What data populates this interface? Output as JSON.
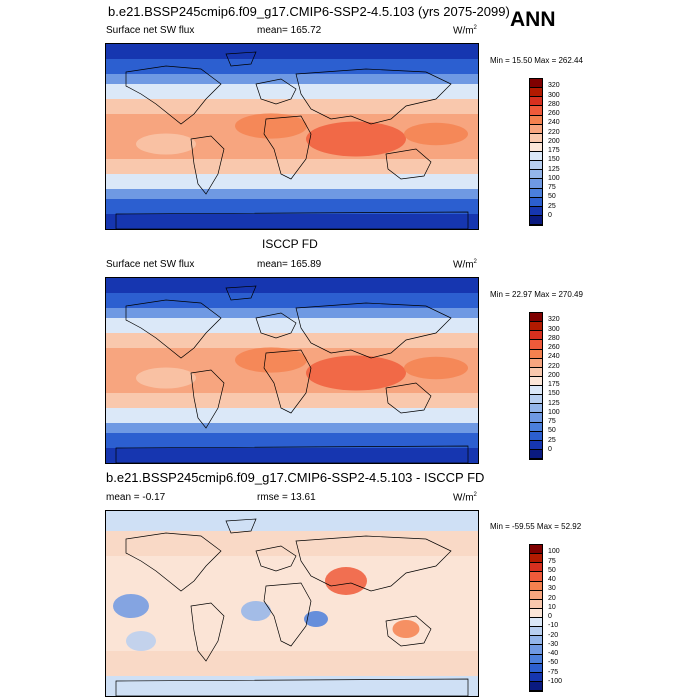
{
  "annotation": "ANN",
  "panels": [
    {
      "title": "b.e21.BSSP245cmip6.f09_g17.CMIP6-SSP2-4.5.103 (yrs 2075-2099)",
      "left_label": "Surface net SW flux",
      "mean_text": "mean= 165.72",
      "units": "W/m",
      "units_sup": "2",
      "minmax": "Min = 15.50 Max = 262.44",
      "colorbar_labels": [
        "320",
        "300",
        "280",
        "260",
        "240",
        "220",
        "200",
        "175",
        "150",
        "125",
        "100",
        "75",
        "50",
        "25",
        "0"
      ]
    },
    {
      "title": "ISCCP FD",
      "left_label": "Surface net SW flux",
      "mean_text": "mean= 165.89",
      "units": "W/m",
      "units_sup": "2",
      "minmax": "Min = 22.97 Max = 270.49",
      "colorbar_labels": [
        "320",
        "300",
        "280",
        "260",
        "240",
        "220",
        "200",
        "175",
        "150",
        "125",
        "100",
        "75",
        "50",
        "25",
        "0"
      ]
    },
    {
      "title": "b.e21.BSSP245cmip6.f09_g17.CMIP6-SSP2-4.5.103 - ISCCP FD",
      "left_label": "mean =  -0.17",
      "mean_text": "rmse =  13.61",
      "units": "W/m",
      "units_sup": "2",
      "minmax": "Min = -59.55 Max =  52.92",
      "colorbar_labels": [
        "100",
        "75",
        "50",
        "40",
        "30",
        "20",
        "10",
        "0",
        "-10",
        "-20",
        "-30",
        "-40",
        "-50",
        "-75",
        "-100"
      ]
    }
  ],
  "colors": {
    "scale": [
      "#7f0000",
      "#b21a00",
      "#d7301f",
      "#ef5a3a",
      "#f4814f",
      "#f7a57f",
      "#f9c8ad",
      "#fce6d8",
      "#dbe8f8",
      "#b8cff0",
      "#93b5ea",
      "#6f99e3",
      "#4b7fdc",
      "#2c5fd0",
      "#1636b0",
      "#0a1a80"
    ]
  }
}
